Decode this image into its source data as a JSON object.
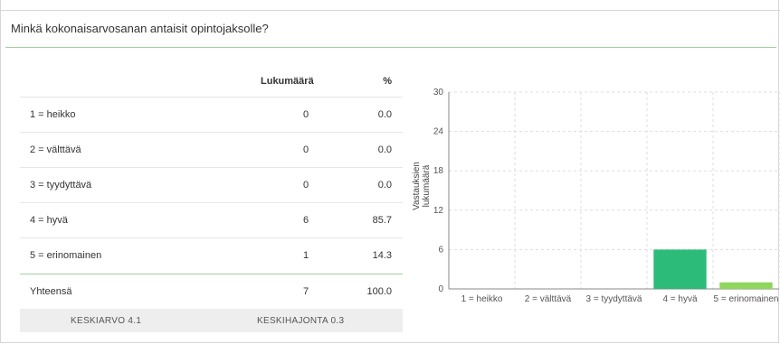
{
  "question": "Minkä kokonaisarvosanan antaisit opintojaksolle?",
  "table": {
    "headers": {
      "count": "Lukumäärä",
      "percent": "%"
    },
    "rows": [
      {
        "label": "1 = heikko",
        "count": "0",
        "percent": "0.0"
      },
      {
        "label": "2 = välttävä",
        "count": "0",
        "percent": "0.0"
      },
      {
        "label": "3 = tyydyttävä",
        "count": "0",
        "percent": "0.0"
      },
      {
        "label": "4 = hyvä",
        "count": "6",
        "percent": "85.7"
      },
      {
        "label": "5 = erinomainen",
        "count": "1",
        "percent": "14.3"
      }
    ],
    "total": {
      "label": "Yhteensä",
      "count": "7",
      "percent": "100.0"
    },
    "footer": {
      "mean": "KESKIARVO 4.1",
      "stddev": "KESKIHAJONTA 0.3"
    }
  },
  "chart_data": {
    "type": "bar",
    "categories": [
      "1 = heikko",
      "2 = välttävä",
      "3 = tyydyttävä",
      "4 = hyvä",
      "5 = erinomainen"
    ],
    "values": [
      0,
      0,
      0,
      6,
      1
    ],
    "bar_colors": [
      "#2dbb7a",
      "#2dbb7a",
      "#2dbb7a",
      "#2dbb7a",
      "#8fd65c"
    ],
    "ylabel": "Vastauksien lukumäärä",
    "xlabel": "",
    "ylim": [
      0,
      30
    ],
    "yticks": [
      0,
      6,
      12,
      18,
      24,
      30
    ],
    "grid": true
  }
}
